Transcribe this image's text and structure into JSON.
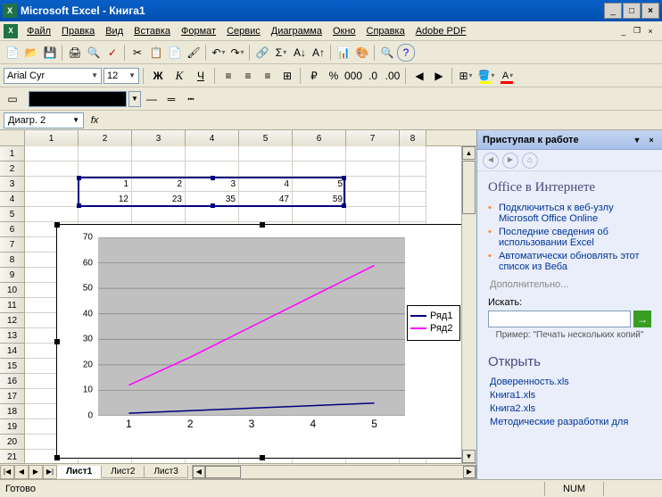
{
  "app": {
    "title": "Microsoft Excel - Книга1"
  },
  "menu": {
    "items": [
      "Файл",
      "Правка",
      "Вид",
      "Вставка",
      "Формат",
      "Сервис",
      "Диаграмма",
      "Окно",
      "Справка",
      "Adobe PDF"
    ]
  },
  "format": {
    "font_name": "Arial Cyr",
    "font_size": "12",
    "bold_label": "Ж",
    "italic_label": "К",
    "underline_label": "Ч"
  },
  "name_box": {
    "value": "Диагр. 2",
    "fx": "fx"
  },
  "columns": [
    "1",
    "2",
    "3",
    "4",
    "5",
    "6",
    "7",
    "8"
  ],
  "data_rows": {
    "row3": [
      "1",
      "2",
      "3",
      "4",
      "5"
    ],
    "row4": [
      "12",
      "23",
      "35",
      "47",
      "59"
    ]
  },
  "chart": {
    "type": "line",
    "x_categories": [
      "1",
      "2",
      "3",
      "4",
      "5"
    ],
    "series": [
      {
        "name": "Ряд1",
        "color": "#000080",
        "values": [
          1,
          2,
          3,
          4,
          5
        ]
      },
      {
        "name": "Ряд2",
        "color": "#ff00ff",
        "values": [
          12,
          23,
          35,
          47,
          59
        ]
      }
    ],
    "ylim": [
      0,
      70
    ],
    "ytick_step": 10,
    "plot_bg": "#c0c0c0",
    "grid_color": "#808080",
    "line_width": 1.5
  },
  "taskpane": {
    "title": "Приступая к работе",
    "section1_title": "Office в Интернете",
    "links": [
      "Подключиться к веб-узлу Microsoft Office Online",
      "Последние сведения об использовании Excel",
      "Автоматически обновлять этот список из Веба"
    ],
    "more": "Дополнительно...",
    "search_label": "Искать:",
    "search_hint": "Пример: \"Печать нескольких копий\"",
    "open_title": "Открыть",
    "files": [
      "Доверенность.xls",
      "Книга1.xls",
      "Книга2.xls",
      "Методические разработки для"
    ]
  },
  "sheets": {
    "tabs": [
      "Лист1",
      "Лист2",
      "Лист3"
    ],
    "active": 0
  },
  "status": {
    "ready": "Готово",
    "num": "NUM"
  }
}
